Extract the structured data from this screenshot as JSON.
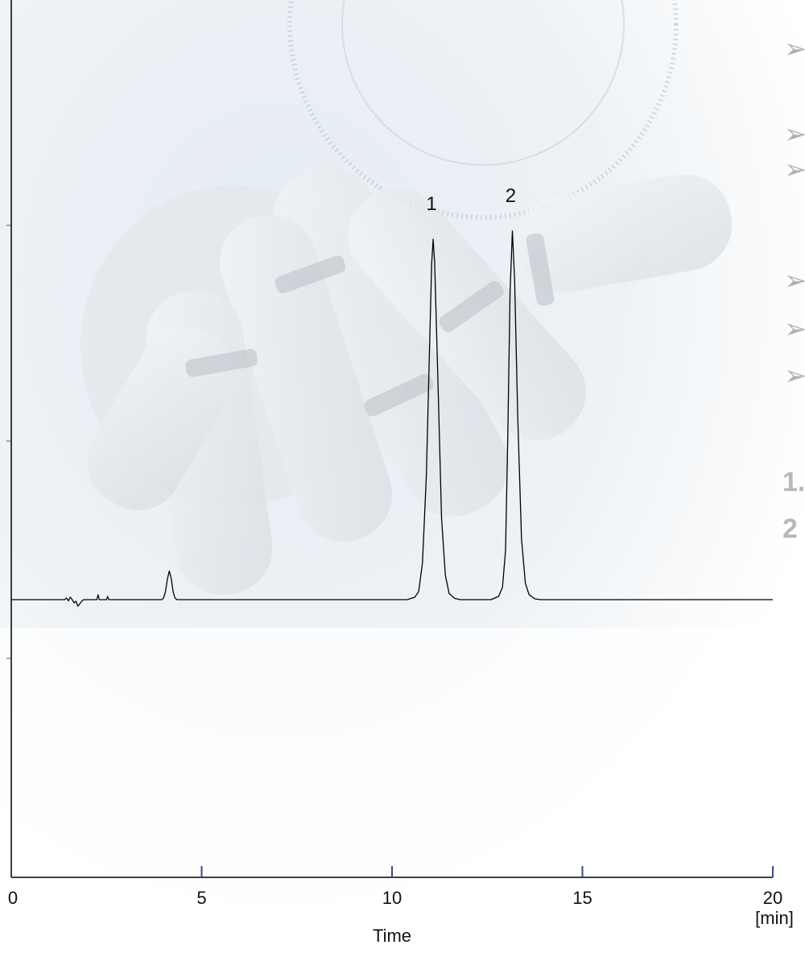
{
  "chart_data": {
    "type": "line",
    "xlabel": "Time",
    "x_unit": "[min]",
    "xlim": [
      0,
      20
    ],
    "x_ticks": [
      0,
      5,
      10,
      15,
      20
    ],
    "ylim": [
      -0.15,
      1.0
    ],
    "grid": false,
    "series": [
      {
        "points": [
          [
            0,
            0
          ],
          [
            1.4,
            0
          ],
          [
            1.45,
            0.004
          ],
          [
            1.5,
            -0.003
          ],
          [
            1.55,
            0.006
          ],
          [
            1.6,
            0.0
          ],
          [
            1.65,
            -0.008
          ],
          [
            1.7,
            -0.004
          ],
          [
            1.75,
            -0.016
          ],
          [
            1.8,
            -0.01
          ],
          [
            1.85,
            -0.004
          ],
          [
            1.9,
            0
          ],
          [
            2.25,
            0
          ],
          [
            2.28,
            0.012
          ],
          [
            2.31,
            0
          ],
          [
            2.5,
            0
          ],
          [
            2.53,
            0.008
          ],
          [
            2.56,
            0
          ],
          [
            3.95,
            0
          ],
          [
            4.0,
            0.004
          ],
          [
            4.05,
            0.02
          ],
          [
            4.1,
            0.05
          ],
          [
            4.15,
            0.07
          ],
          [
            4.2,
            0.052
          ],
          [
            4.25,
            0.02
          ],
          [
            4.3,
            0.004
          ],
          [
            4.35,
            0
          ],
          [
            10.4,
            0
          ],
          [
            10.6,
            0.006
          ],
          [
            10.7,
            0.02
          ],
          [
            10.8,
            0.09
          ],
          [
            10.9,
            0.3
          ],
          [
            10.98,
            0.6
          ],
          [
            11.04,
            0.82
          ],
          [
            11.08,
            0.88
          ],
          [
            11.12,
            0.82
          ],
          [
            11.2,
            0.55
          ],
          [
            11.3,
            0.2
          ],
          [
            11.4,
            0.06
          ],
          [
            11.5,
            0.015
          ],
          [
            11.65,
            0.003
          ],
          [
            11.8,
            0
          ],
          [
            12.6,
            0
          ],
          [
            12.8,
            0.008
          ],
          [
            12.9,
            0.03
          ],
          [
            12.98,
            0.12
          ],
          [
            13.04,
            0.4
          ],
          [
            13.1,
            0.75
          ],
          [
            13.16,
            0.9
          ],
          [
            13.22,
            0.78
          ],
          [
            13.3,
            0.45
          ],
          [
            13.4,
            0.15
          ],
          [
            13.5,
            0.04
          ],
          [
            13.6,
            0.012
          ],
          [
            13.75,
            0.002
          ],
          [
            13.9,
            0
          ],
          [
            20,
            0
          ]
        ]
      }
    ],
    "annotations": [
      {
        "text": "1",
        "x": 11.08
      },
      {
        "text": "2",
        "x": 13.16
      }
    ]
  },
  "side_panel": {
    "numbers": [
      "1.",
      "2"
    ]
  }
}
